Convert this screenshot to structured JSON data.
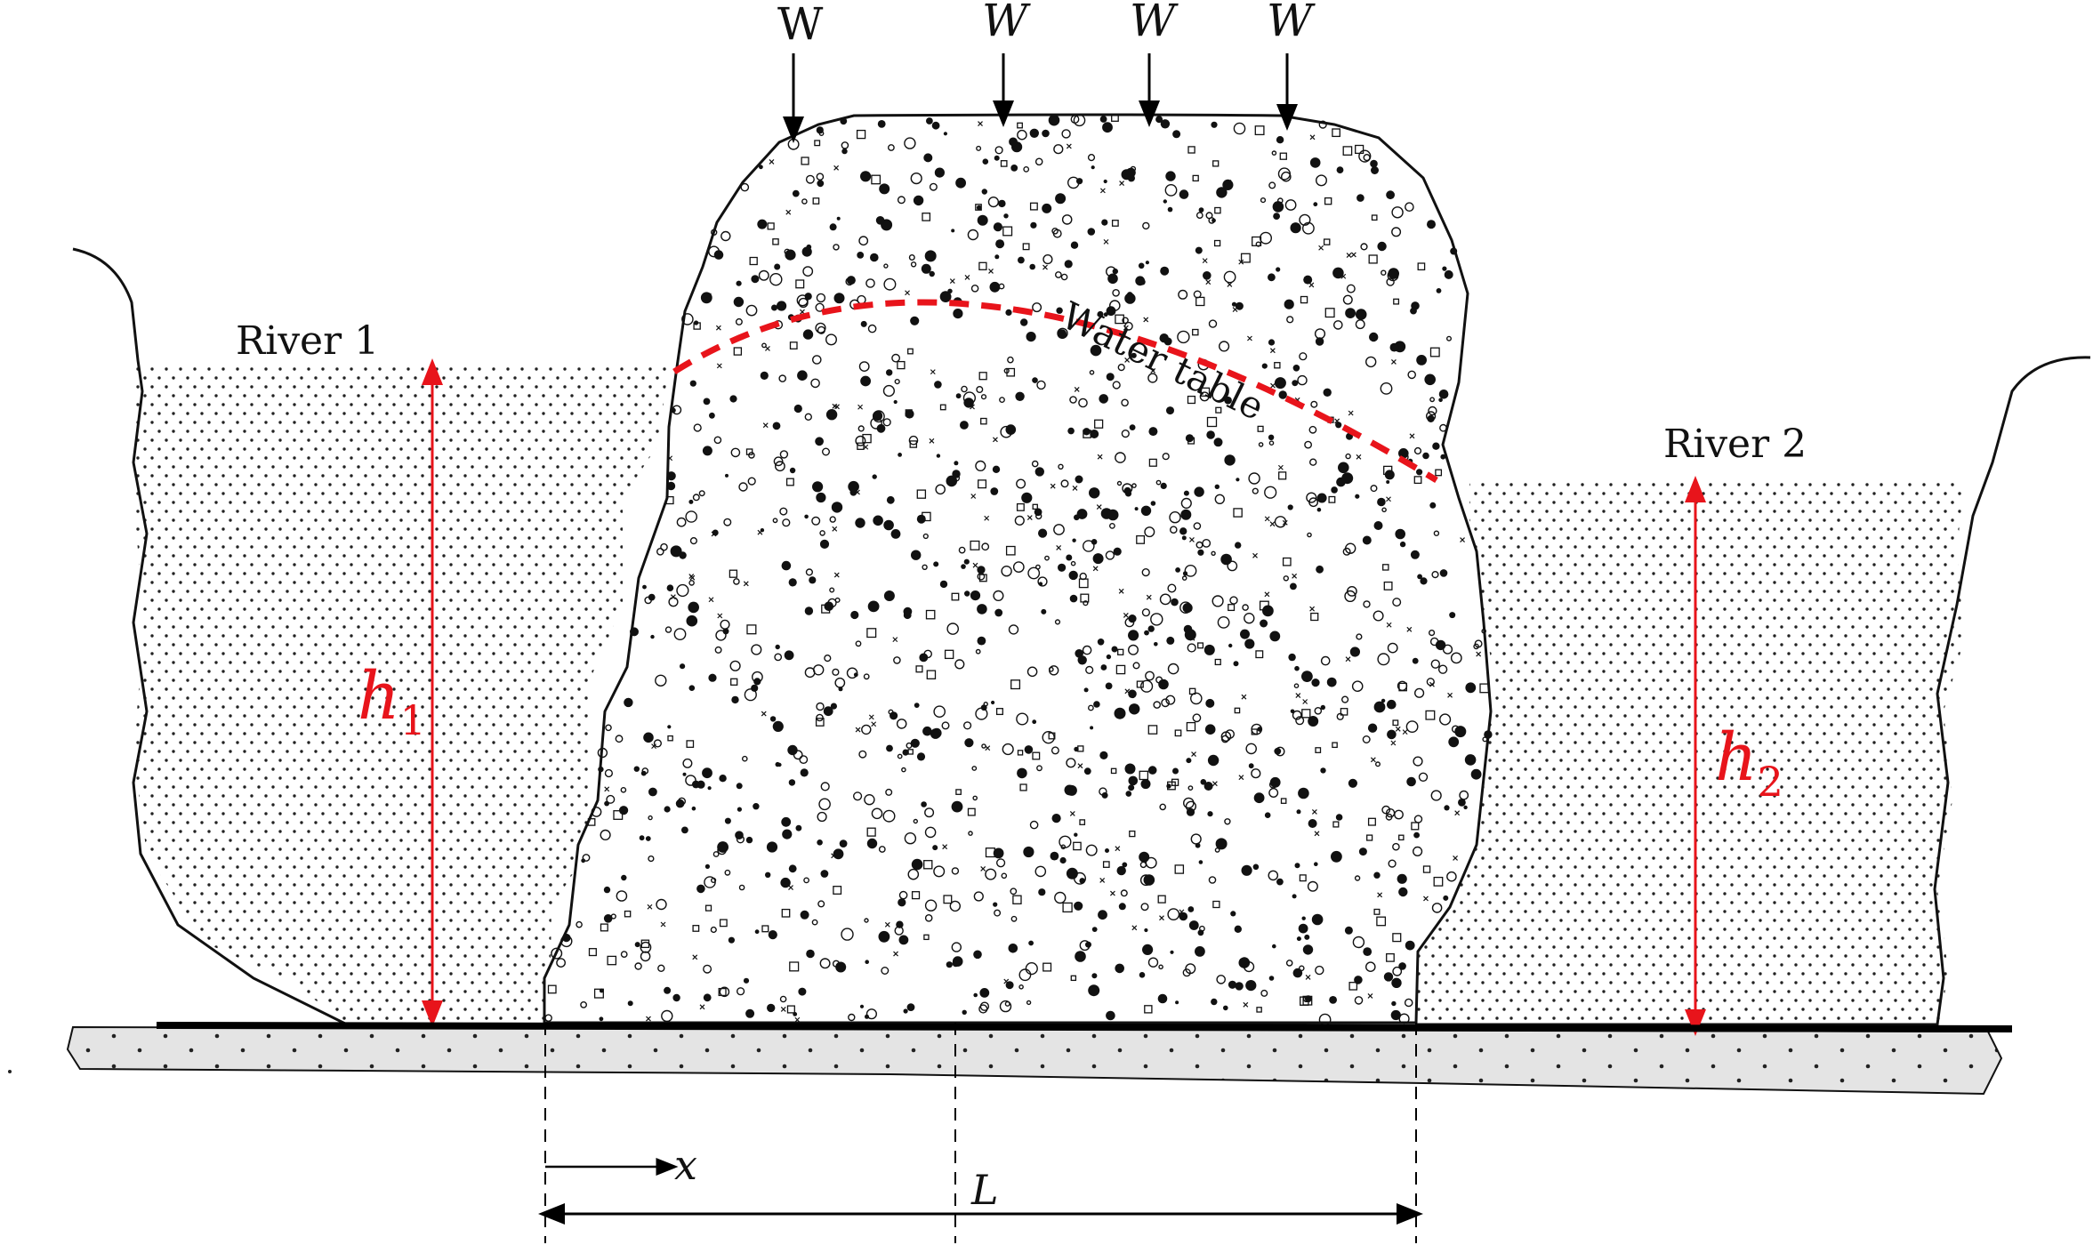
{
  "labels": {
    "river_left": "River 1",
    "river_right": "River 2",
    "water_table": "Water table",
    "h1_main": "h",
    "h1_sub": "1",
    "h2_main": "h",
    "h2_sub": "2",
    "x_label": "x",
    "L_label": "L"
  },
  "loads": [
    "W",
    "W",
    "W",
    "W"
  ],
  "colors": {
    "annotation_red": "#e8141b",
    "outline": "#000000",
    "base_fill": "#e4e4e4"
  }
}
